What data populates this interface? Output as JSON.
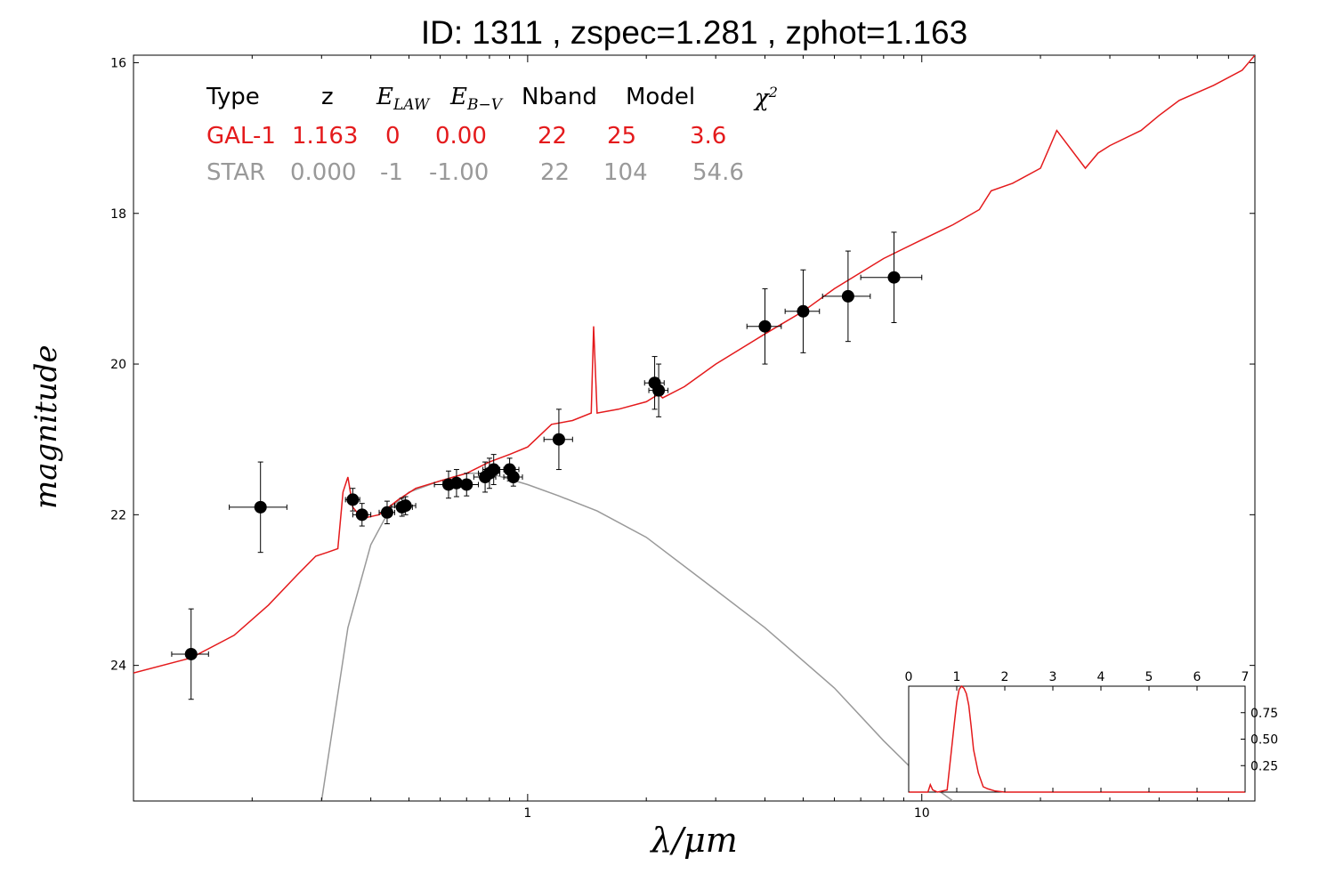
{
  "chart_data": [
    {
      "type": "line",
      "title": "ID:  1311  , zspec=1.281 , zphot=1.163",
      "xlabel": "λ/μm",
      "ylabel": "magnitude",
      "xscale": "log",
      "xlim": [
        0.1,
        70
      ],
      "ylim": [
        25.8,
        15.9
      ],
      "y_inverted": true,
      "x_ticks": [
        "1",
        "10"
      ],
      "y_ticks": [
        "16",
        "18",
        "20",
        "22",
        "24"
      ],
      "legend_table": {
        "headers": [
          "Type",
          "z",
          "E_LAW",
          "E_B-V",
          "Nband",
          "Model",
          "χ²"
        ],
        "rows": [
          {
            "color": "#e41a1c",
            "cells": [
              "GAL-1",
              "1.163",
              "0",
              "0.00",
              "22",
              "25",
              "3.6"
            ]
          },
          {
            "color": "#999999",
            "cells": [
              "STAR",
              "0.000",
              "-1",
              "-1.00",
              "22",
              "104",
              "54.6"
            ]
          }
        ]
      },
      "series": [
        {
          "color": "#e41a1c",
          "x": [
            0.1,
            0.14,
            0.18,
            0.22,
            0.26,
            0.29,
            0.31,
            0.33,
            0.34,
            0.35,
            0.36,
            0.38,
            0.42,
            0.47,
            0.52,
            0.6,
            0.7,
            0.8,
            0.9,
            1.0,
            1.15,
            1.3,
            1.45,
            1.47,
            1.5,
            1.7,
            2.0,
            2.15,
            2.2,
            2.5,
            3.0,
            4.0,
            5.0,
            6.0,
            8.0,
            10.0,
            12.0,
            14.0,
            15.0,
            17.0,
            20.0,
            22.0,
            26.0,
            28.0,
            30.0,
            36.0,
            40.0,
            45.0,
            55.0,
            65.0,
            70.0
          ],
          "y": [
            24.1,
            23.9,
            23.6,
            23.2,
            22.8,
            22.55,
            22.5,
            22.45,
            21.7,
            21.5,
            21.9,
            22.05,
            22.0,
            21.8,
            21.65,
            21.55,
            21.45,
            21.3,
            21.2,
            21.1,
            20.8,
            20.75,
            20.65,
            19.5,
            20.65,
            20.6,
            20.5,
            20.4,
            20.45,
            20.3,
            20.0,
            19.6,
            19.3,
            19.0,
            18.6,
            18.35,
            18.15,
            17.95,
            17.7,
            17.6,
            17.4,
            16.9,
            17.4,
            17.2,
            17.1,
            16.9,
            16.7,
            16.5,
            16.3,
            16.1,
            15.9
          ]
        },
        {
          "color": "#999999",
          "x": [
            0.3,
            0.35,
            0.4,
            0.45,
            0.5,
            0.6,
            0.7,
            0.8,
            1.0,
            1.2,
            1.5,
            2.0,
            3.0,
            4.0,
            6.0,
            8.0,
            10.0,
            12.0
          ],
          "y": [
            25.8,
            23.5,
            22.4,
            21.9,
            21.7,
            21.55,
            21.45,
            21.45,
            21.6,
            21.75,
            21.95,
            22.3,
            23.0,
            23.5,
            24.3,
            25.0,
            25.5,
            25.8
          ]
        }
      ],
      "points": {
        "x": [
          0.14,
          0.21,
          0.36,
          0.38,
          0.44,
          0.48,
          0.49,
          0.63,
          0.66,
          0.7,
          0.78,
          0.8,
          0.82,
          0.9,
          0.92,
          1.2,
          2.1,
          2.15,
          4.0,
          5.0,
          6.5,
          8.5
        ],
        "y": [
          23.85,
          21.9,
          21.8,
          22.0,
          21.97,
          21.9,
          21.88,
          21.6,
          21.58,
          21.6,
          21.5,
          21.45,
          21.4,
          21.4,
          21.5,
          21.0,
          20.25,
          20.35,
          19.5,
          19.3,
          19.1,
          18.85
        ],
        "yerr": [
          0.6,
          0.6,
          0.15,
          0.15,
          0.15,
          0.12,
          0.12,
          0.18,
          0.18,
          0.15,
          0.2,
          0.2,
          0.2,
          0.15,
          0.12,
          0.4,
          0.35,
          0.35,
          0.5,
          0.55,
          0.6,
          0.6
        ],
        "xerr": [
          0.015,
          0.035,
          0.015,
          0.02,
          0.02,
          0.03,
          0.03,
          0.05,
          0.05,
          0.05,
          0.05,
          0.05,
          0.05,
          0.05,
          0.05,
          0.1,
          0.12,
          0.12,
          0.4,
          0.5,
          0.9,
          1.5
        ]
      }
    },
    {
      "type": "line",
      "title": "",
      "xlabel": "",
      "ylabel": "",
      "xlim": [
        0,
        7
      ],
      "ylim": [
        0,
        1.0
      ],
      "x_ticks": [
        "0",
        "1",
        "2",
        "3",
        "4",
        "5",
        "6",
        "7"
      ],
      "y_ticks": [
        "0.25",
        "0.50",
        "0.75"
      ],
      "series": [
        {
          "color": "#e41a1c",
          "x": [
            0,
            0.4,
            0.45,
            0.5,
            0.6,
            0.8,
            0.95,
            1.0,
            1.05,
            1.1,
            1.15,
            1.2,
            1.25,
            1.3,
            1.35,
            1.45,
            1.55,
            1.65,
            1.8,
            2.0,
            7.0
          ],
          "y": [
            0,
            0,
            0.07,
            0.02,
            0,
            0.02,
            0.65,
            0.85,
            0.97,
            1.0,
            0.98,
            0.93,
            0.82,
            0.62,
            0.4,
            0.18,
            0.05,
            0.03,
            0.01,
            0,
            0
          ]
        }
      ]
    }
  ]
}
